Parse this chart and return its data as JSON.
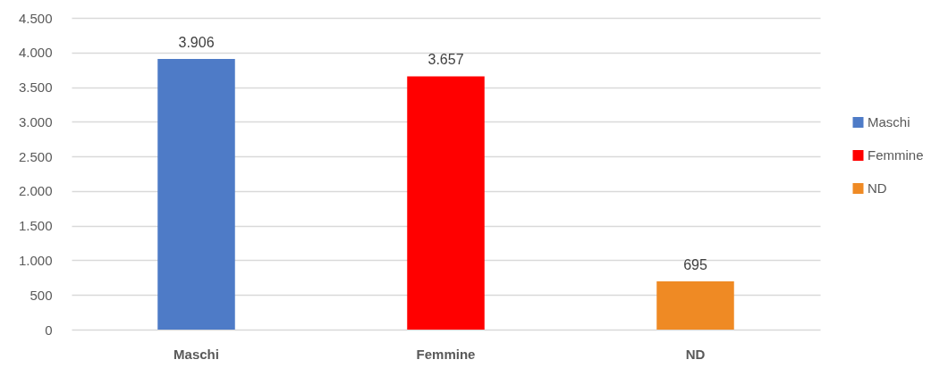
{
  "chart_data": {
    "type": "bar",
    "stacked": true,
    "categories": [
      "Maschi",
      "Femmine",
      "ND"
    ],
    "series": [
      {
        "name": "Maschi",
        "color": "#4e7bc7",
        "values": [
          3906,
          null,
          null
        ],
        "value_labels": [
          "3.906",
          null,
          null
        ]
      },
      {
        "name": "Femmine",
        "color": "#ff0000",
        "values": [
          null,
          3657,
          null
        ],
        "value_labels": [
          null,
          "3.657",
          null
        ]
      },
      {
        "name": "ND",
        "color": "#ef8a24",
        "values": [
          null,
          null,
          695
        ],
        "value_labels": [
          null,
          null,
          "695"
        ]
      }
    ],
    "ylim": [
      0,
      4500
    ],
    "yticks": [
      0,
      500,
      {
        "value": 1000,
        "label": "1.000"
      },
      {
        "value": 1500,
        "label": "1.500"
      },
      {
        "value": 2000,
        "label": "2.000"
      },
      {
        "value": 2500,
        "label": "2.500"
      },
      {
        "value": 3000,
        "label": "3.000"
      },
      {
        "value": 3500,
        "label": "3.500"
      },
      {
        "value": 4000,
        "label": "4.000"
      },
      {
        "value": 4500,
        "label": "4.500"
      }
    ],
    "grid": "y",
    "legend": "right"
  }
}
